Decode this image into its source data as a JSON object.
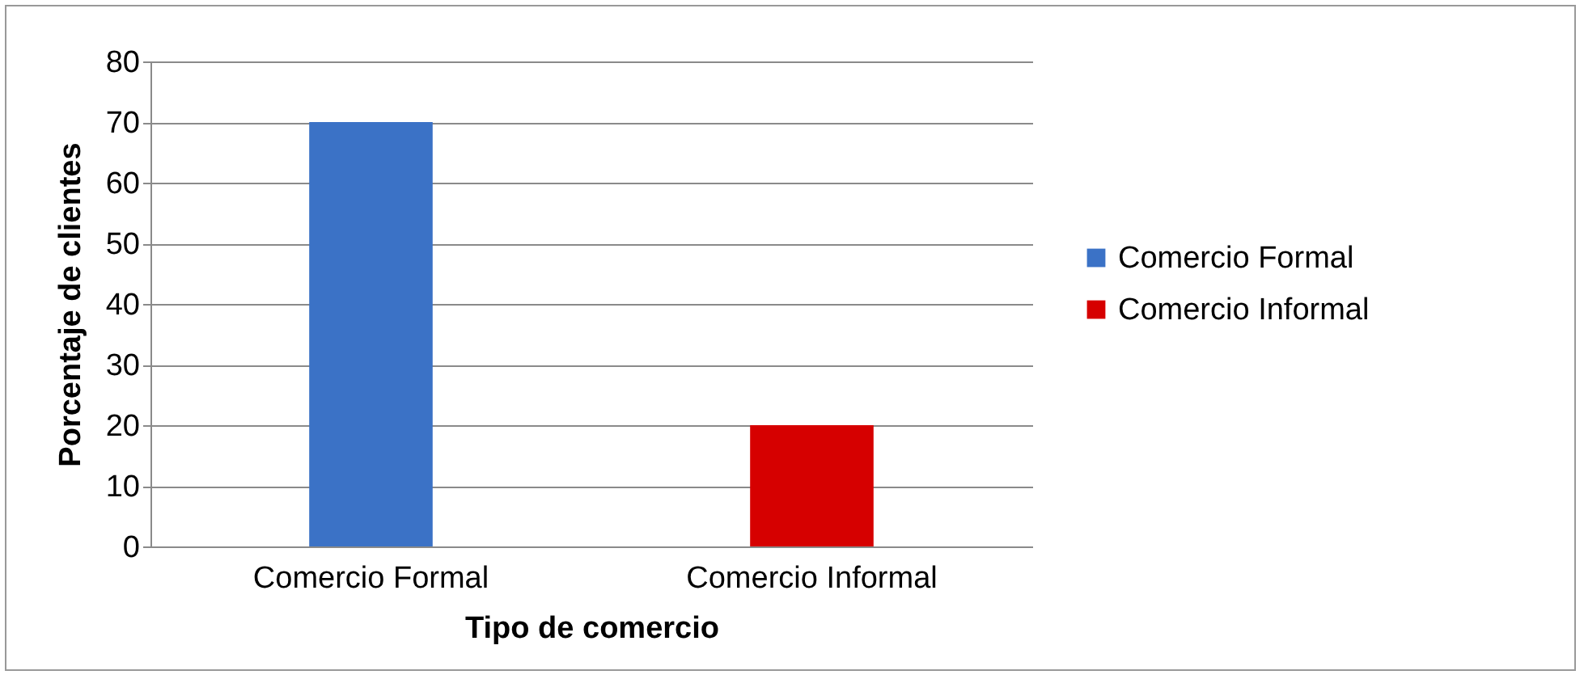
{
  "chart_data": {
    "type": "bar",
    "xlabel": "Tipo de comercio",
    "ylabel": "Porcentaje de clientes",
    "categories": [
      "Comercio Formal",
      "Comercio Informal"
    ],
    "series": [
      {
        "name": "Comercio Formal",
        "color": "#3b72c6",
        "values": [
          70,
          null
        ]
      },
      {
        "name": "Comercio Informal",
        "color": "#d60000",
        "values": [
          null,
          20
        ]
      }
    ],
    "ylim": [
      0,
      80
    ],
    "yticks": [
      0,
      10,
      20,
      30,
      40,
      50,
      60,
      70,
      80
    ],
    "grid": "y",
    "legend": "right"
  }
}
